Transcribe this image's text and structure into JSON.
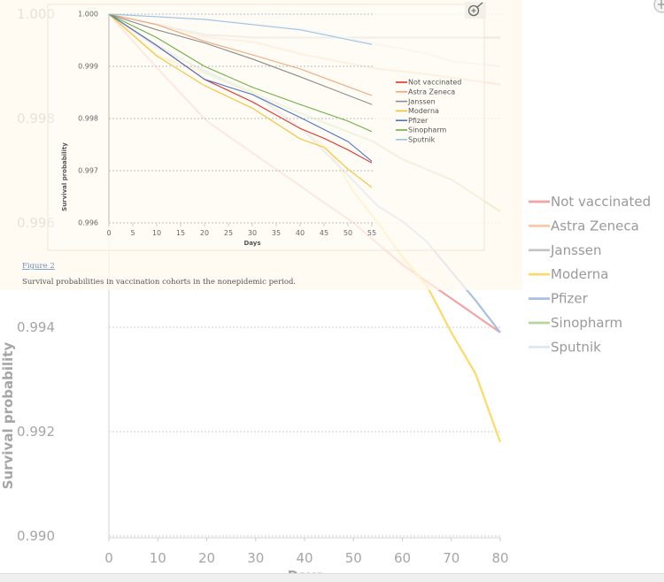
{
  "chart_data": [
    {
      "type": "line",
      "name": "background-chart",
      "title": "",
      "xlabel": "Days",
      "ylabel": "Survival probability",
      "xlim": [
        0,
        80
      ],
      "ylim": [
        0.99,
        1.0
      ],
      "x_ticks": [
        "0",
        "10",
        "20",
        "30",
        "40",
        "50",
        "60",
        "70",
        "80"
      ],
      "y_ticks": [
        "0.990",
        "0.992",
        "0.994",
        "0.996",
        "0.998",
        "1.000"
      ],
      "grid": true,
      "legend_position": "right",
      "series": [
        {
          "name": "Not vaccinated",
          "color": "#f4a3a0",
          "x": [
            0,
            10,
            20,
            30,
            40,
            50,
            60,
            70,
            80
          ],
          "y": [
            1,
            0.99895,
            0.99795,
            0.9973,
            0.99665,
            0.996,
            0.9952,
            0.99455,
            0.9939
          ]
        },
        {
          "name": "Astra Zeneca",
          "color": "#f8c9a6",
          "x": [
            0,
            10,
            20,
            30,
            40,
            55,
            65,
            80
          ],
          "y": [
            1,
            0.9998,
            0.99956,
            0.99946,
            0.99922,
            0.99895,
            0.99885,
            0.99865
          ]
        },
        {
          "name": "Janssen",
          "color": "#c3c3c3",
          "x": [
            0,
            10,
            20,
            25,
            30,
            80
          ],
          "y": [
            1,
            0.9998,
            0.9996,
            0.99958,
            0.99955,
            0.99955
          ]
        },
        {
          "name": "Moderna",
          "color": "#ffd966",
          "x": [
            0,
            10,
            20,
            30,
            40,
            45,
            50,
            55,
            60,
            65,
            70,
            75,
            80
          ],
          "y": [
            1,
            0.9992,
            0.99885,
            0.9985,
            0.99775,
            0.9974,
            0.9966,
            0.996,
            0.99535,
            0.9948,
            0.9939,
            0.9931,
            0.9918
          ]
        },
        {
          "name": "Pfizer",
          "color": "#a9bfe6",
          "x": [
            0,
            10,
            20,
            30,
            40,
            48,
            55,
            60,
            65,
            70,
            75,
            80
          ],
          "y": [
            1,
            0.99935,
            0.9989,
            0.99845,
            0.99775,
            0.997,
            0.99632,
            0.99603,
            0.99564,
            0.99507,
            0.99451,
            0.9939
          ]
        },
        {
          "name": "Sinopharm",
          "color": "#b5d69c",
          "x": [
            0,
            10,
            20,
            30,
            40,
            54,
            60,
            70,
            80
          ],
          "y": [
            1,
            0.9994,
            0.99886,
            0.99846,
            0.99807,
            0.99756,
            0.99722,
            0.99683,
            0.99622
          ]
        },
        {
          "name": "Sputnik",
          "color": "#dce7f4",
          "x": [
            0,
            10,
            20,
            40,
            55,
            65,
            70,
            80
          ],
          "y": [
            1,
            0.99995,
            0.9999,
            0.99971,
            0.99942,
            0.99925,
            0.9991,
            0.999
          ]
        }
      ]
    },
    {
      "type": "line",
      "name": "inset-chart",
      "title": "",
      "xlabel": "Days",
      "ylabel": "Survival probability",
      "xlim": [
        0,
        55
      ],
      "ylim": [
        0.996,
        1.0
      ],
      "x_ticks": [
        "0",
        "5",
        "10",
        "15",
        "20",
        "25",
        "30",
        "35",
        "40",
        "45",
        "50",
        "55"
      ],
      "y_ticks": [
        "0.996",
        "0.997",
        "0.998",
        "0.999",
        "1.000"
      ],
      "grid": true,
      "legend_position": "right",
      "series": [
        {
          "name": "Not vaccinated",
          "color": "#e0312c",
          "x": [
            0,
            10,
            20,
            30,
            40,
            45,
            50,
            55
          ],
          "y": [
            1,
            0.9994,
            0.99875,
            0.99832,
            0.99781,
            0.99762,
            0.9974,
            0.99715
          ]
        },
        {
          "name": "Astra Zeneca",
          "color": "#f0a878",
          "x": [
            0,
            10,
            20,
            30,
            40,
            55
          ],
          "y": [
            1,
            0.9998,
            0.99948,
            0.99922,
            0.99895,
            0.99844
          ]
        },
        {
          "name": "Janssen",
          "color": "#8c8c8c",
          "x": [
            0,
            10,
            20,
            30,
            40,
            55
          ],
          "y": [
            1,
            0.9997,
            0.99945,
            0.99914,
            0.9988,
            0.99827
          ]
        },
        {
          "name": "Moderna",
          "color": "#f2c12e",
          "x": [
            0,
            10,
            20,
            30,
            40,
            45,
            50,
            55
          ],
          "y": [
            1,
            0.9992,
            0.99863,
            0.9982,
            0.99761,
            0.99745,
            0.99703,
            0.99668
          ]
        },
        {
          "name": "Pfizer",
          "color": "#4a74c9",
          "x": [
            0,
            10,
            20,
            30,
            40,
            50,
            55
          ],
          "y": [
            1,
            0.9994,
            0.99875,
            0.99846,
            0.99802,
            0.99756,
            0.99718
          ]
        },
        {
          "name": "Sinopharm",
          "color": "#6fae47",
          "x": [
            0,
            10,
            20,
            30,
            40,
            50,
            55
          ],
          "y": [
            1,
            0.99955,
            0.999,
            0.9986,
            0.99827,
            0.99795,
            0.99775
          ]
        },
        {
          "name": "Sputnik",
          "color": "#9dc3e6",
          "x": [
            0,
            10,
            20,
            40,
            55
          ],
          "y": [
            1,
            0.99995,
            0.9999,
            0.9997,
            0.99942
          ]
        }
      ]
    }
  ],
  "figure": {
    "link_label": "Figure 2",
    "caption": "Survival probabilities in vaccination cohorts in the nonepidemic period."
  },
  "icons": {
    "inset_zoom": "zoom-in-icon",
    "corner": "zoom-in-icon"
  }
}
